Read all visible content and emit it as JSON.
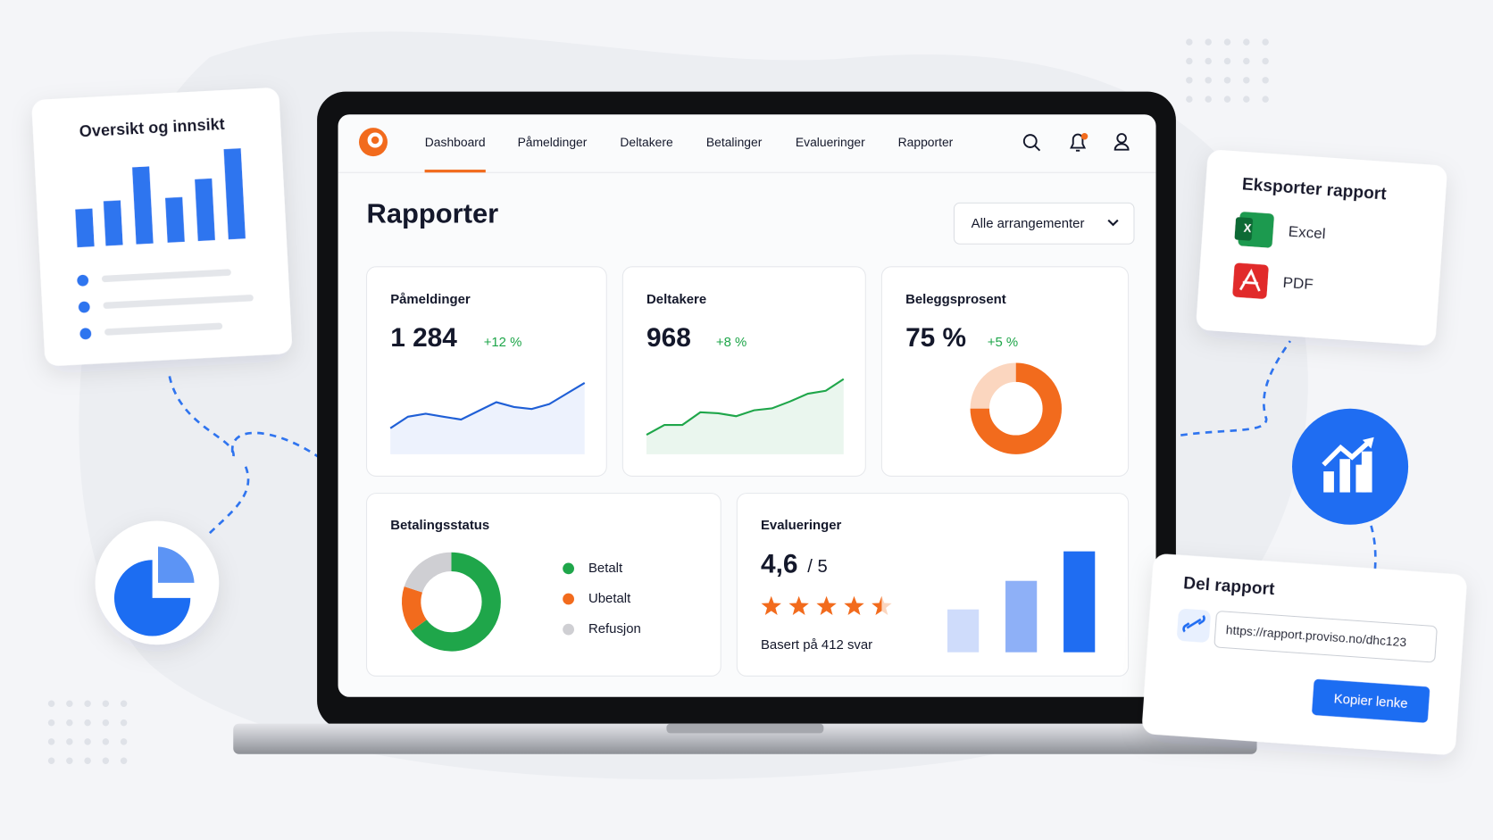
{
  "left_card": {
    "title": "Oversikt og innsikt"
  },
  "nav": {
    "items": [
      "Dashboard",
      "Påmeldinger",
      "Deltakere",
      "Betalinger",
      "Evalueringer",
      "Rapporter"
    ]
  },
  "page": {
    "title": "Rapporter",
    "filter": "Alle arrangementer"
  },
  "kpis": [
    {
      "label": "Påmeldinger",
      "value": "1 284",
      "change": "+12 %",
      "trend": [
        27,
        39,
        42,
        39,
        36,
        45,
        54,
        49,
        47,
        52,
        63,
        74
      ]
    },
    {
      "label": "Deltakere",
      "value": "968",
      "change": "+8 %",
      "trend": [
        20,
        30,
        30,
        43,
        42,
        39,
        45,
        47,
        54,
        62,
        65,
        77
      ]
    },
    {
      "label": "Beleggsprosent",
      "value": "75 %",
      "change": "+5 %",
      "share": 75
    }
  ],
  "payment": {
    "title": "Betalingsstatus",
    "segments": [
      {
        "name": "Betalt",
        "color": "#1fa64a",
        "share": 65
      },
      {
        "name": "Ubetalt",
        "color": "#f26b1d",
        "share": 15
      },
      {
        "name": "Refusjon",
        "color": "#cfcfd3",
        "share": 20
      }
    ]
  },
  "ratings": {
    "title": "Evalueringer",
    "score": "4,6",
    "scale": "/ 5",
    "basis": "Basert på 412 svar",
    "bars": [
      {
        "value": 45,
        "color": "#cfdcfb"
      },
      {
        "value": 75,
        "color": "#8eb0f7"
      },
      {
        "value": 106,
        "color": "#1f6df2"
      }
    ]
  },
  "export": {
    "title": "Eksporter rapport",
    "options": [
      "Excel",
      "PDF"
    ]
  },
  "share": {
    "title": "Del rapport",
    "url": "https://rapport.proviso.no/dhc123",
    "button": "Kopier lenke"
  }
}
